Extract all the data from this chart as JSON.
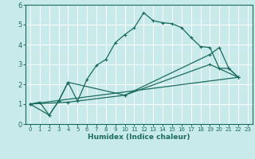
{
  "xlabel": "Humidex (Indice chaleur)",
  "bg_color": "#c9eaea",
  "grid_color": "#ffffff",
  "line_color": "#1a6b5e",
  "xlim": [
    -0.5,
    23.5
  ],
  "ylim": [
    0,
    6
  ],
  "xticks": [
    0,
    1,
    2,
    3,
    4,
    5,
    6,
    7,
    8,
    9,
    10,
    11,
    12,
    13,
    14,
    15,
    16,
    17,
    18,
    19,
    20,
    21,
    22,
    23
  ],
  "yticks": [
    0,
    1,
    2,
    3,
    4,
    5,
    6
  ],
  "line1_x": [
    0,
    1,
    2,
    3,
    4,
    5,
    6,
    7,
    8,
    9,
    10,
    11,
    12,
    13,
    14,
    15,
    16,
    17,
    18,
    19,
    20,
    21,
    22
  ],
  "line1_y": [
    1.0,
    1.1,
    0.45,
    1.15,
    2.1,
    1.15,
    2.25,
    2.95,
    3.25,
    4.1,
    4.5,
    4.85,
    5.6,
    5.2,
    5.1,
    5.05,
    4.85,
    4.35,
    3.9,
    3.85,
    2.8,
    2.8,
    2.35
  ],
  "line2_x": [
    0,
    2,
    3,
    4,
    10,
    19,
    20,
    21,
    22
  ],
  "line2_y": [
    1.0,
    0.45,
    1.15,
    2.1,
    1.45,
    3.5,
    3.85,
    2.8,
    2.35
  ],
  "line3_x": [
    0,
    22
  ],
  "line3_y": [
    1.0,
    2.35
  ],
  "line4_x": [
    0,
    4,
    10,
    19,
    22
  ],
  "line4_y": [
    1.0,
    1.1,
    1.45,
    3.0,
    2.35
  ]
}
